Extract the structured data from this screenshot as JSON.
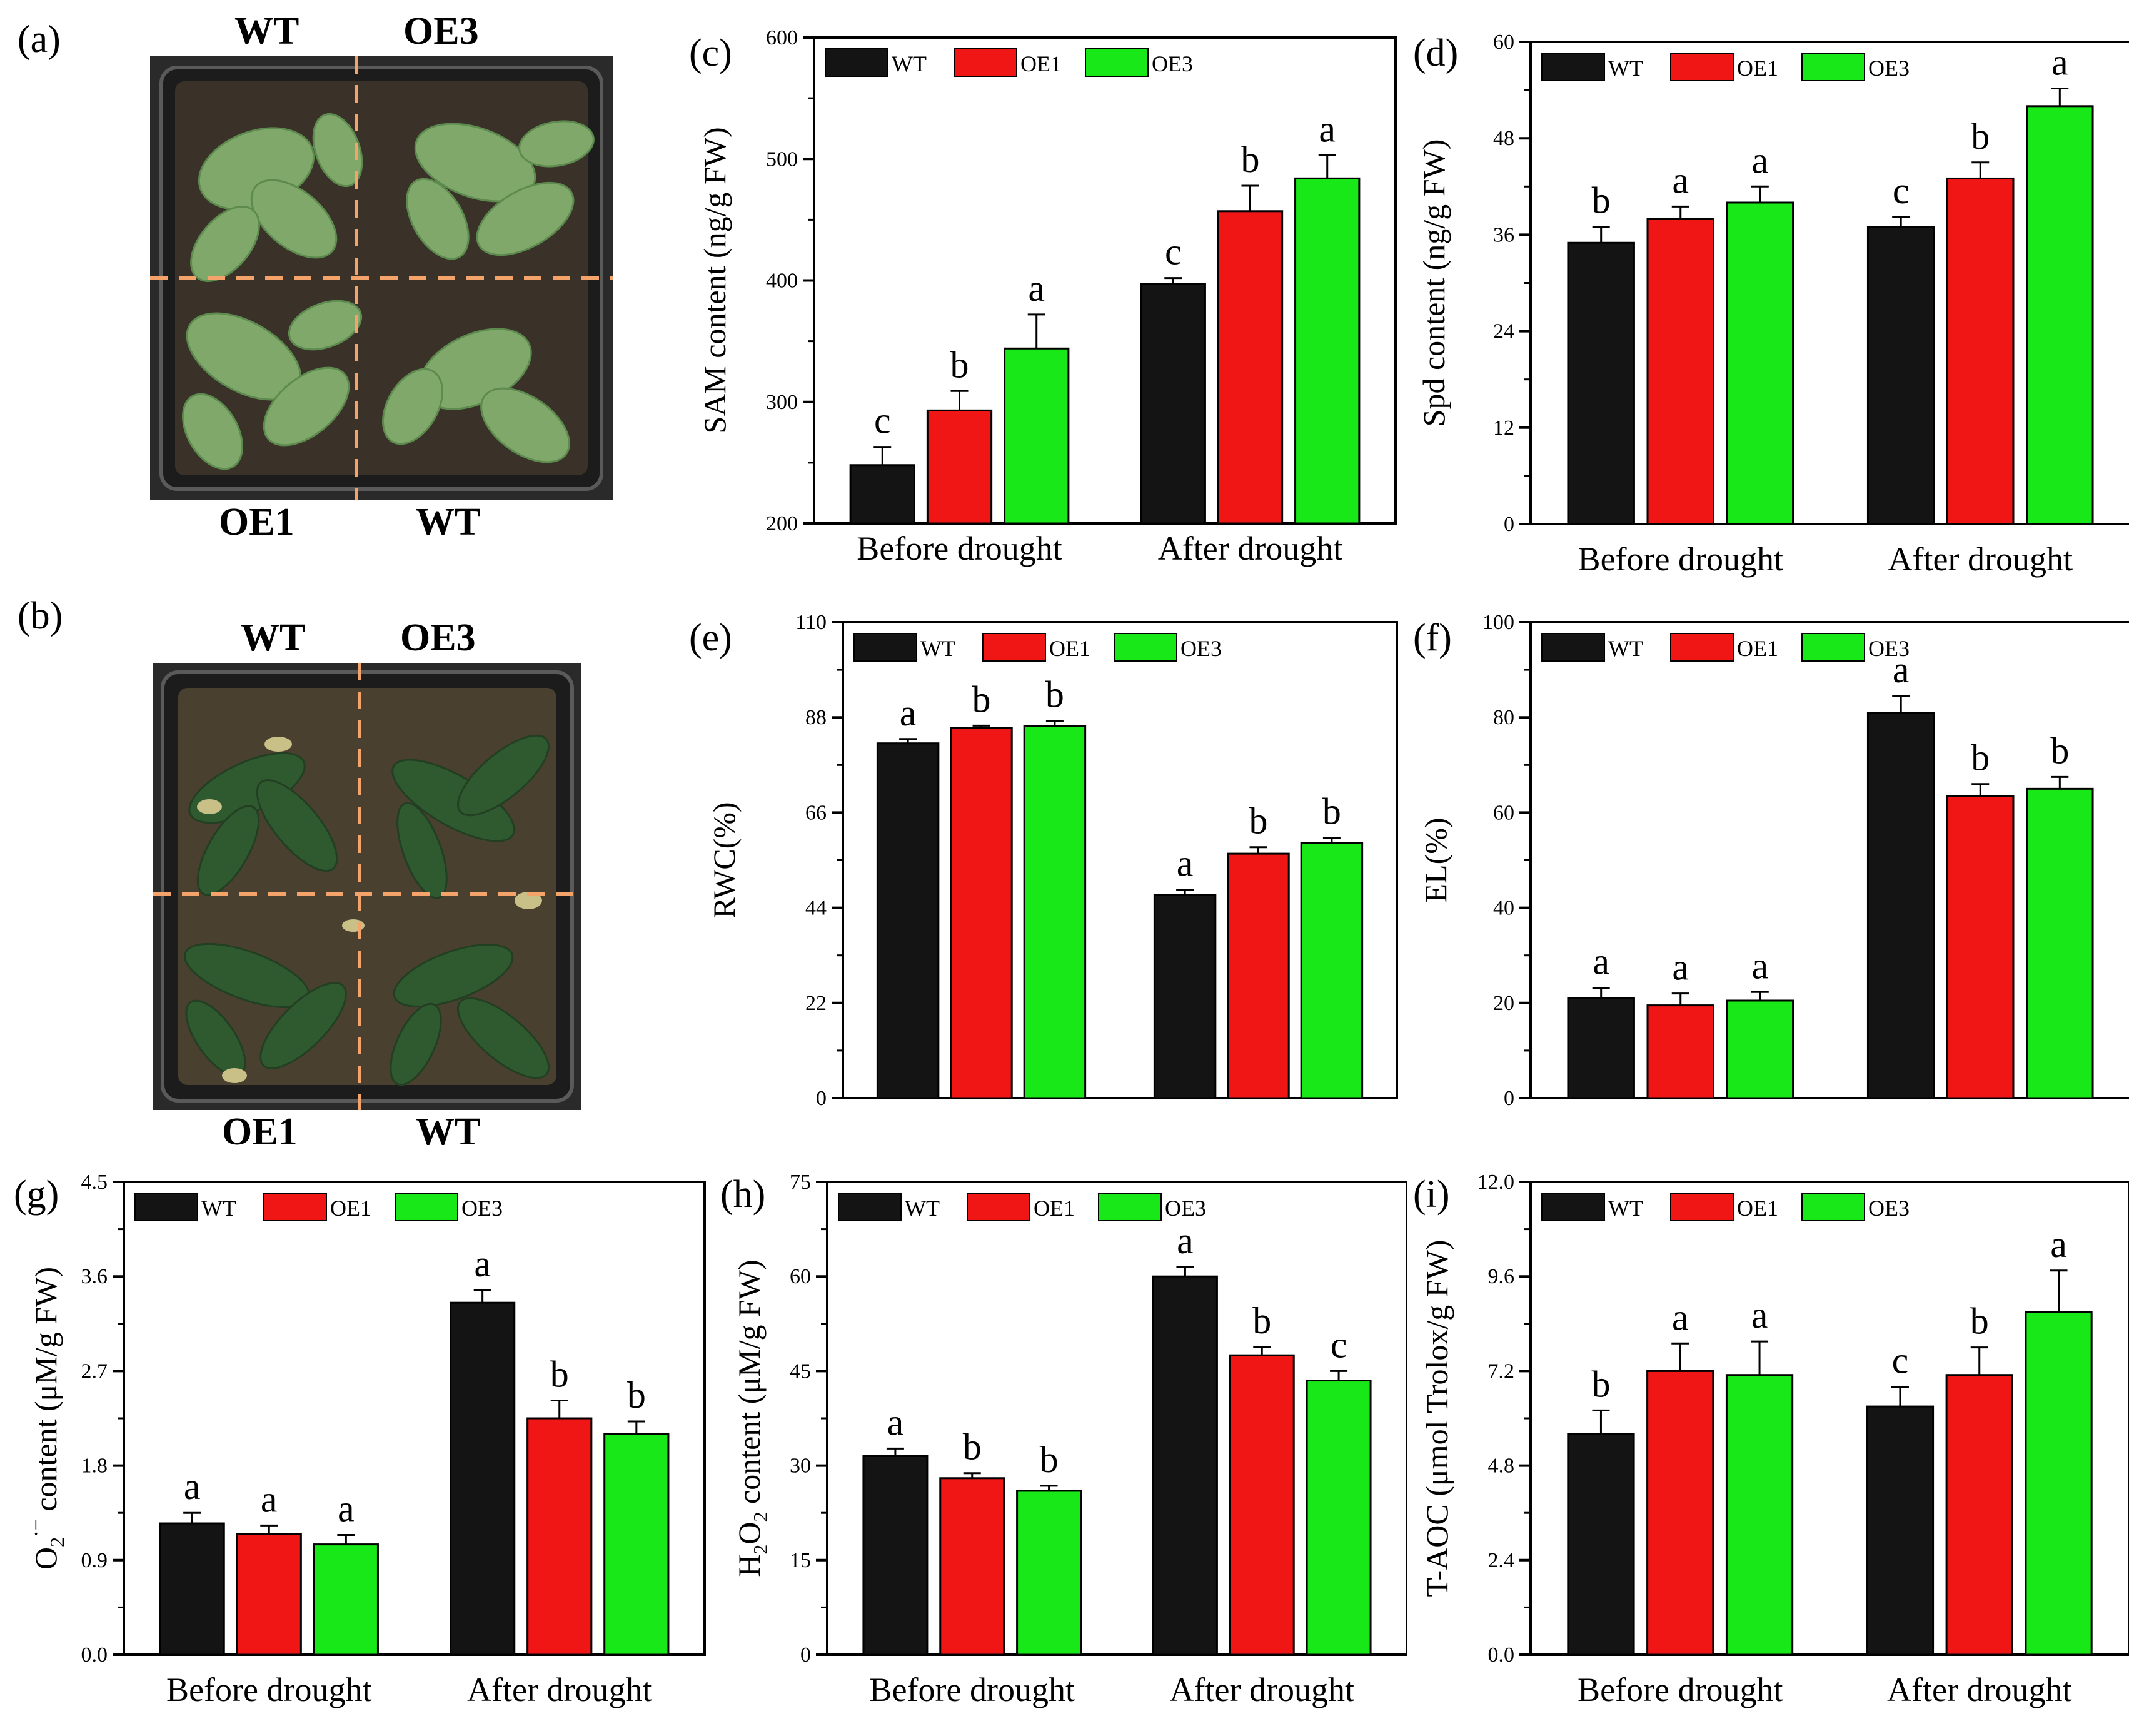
{
  "legend_colors": {
    "WT": "#141414",
    "OE1": "#f01616",
    "OE3": "#18e818"
  },
  "photos": [
    {
      "letter": "(a)",
      "labels": {
        "top_left": "WT",
        "top_right": "OE3",
        "bottom_left": "OE1",
        "bottom_right": "WT"
      }
    },
    {
      "letter": "(b)",
      "labels": {
        "top_left": "WT",
        "top_right": "OE3",
        "bottom_left": "OE1",
        "bottom_right": "WT"
      }
    }
  ],
  "chart_data": [
    {
      "panel": "(c)",
      "type": "bar",
      "title": "",
      "ylabel": "SAM content (ng/g FW)",
      "xlabel": "",
      "categories": [
        "Before drought",
        "After drought"
      ],
      "ylim": [
        200,
        600
      ],
      "yticks": [
        200,
        300,
        400,
        500,
        600
      ],
      "yticklabels": [
        "200",
        "300",
        "400",
        "500",
        "600"
      ],
      "series": [
        {
          "name": "WT",
          "values": [
            248,
            397
          ],
          "errors": [
            15,
            5
          ],
          "letters": [
            "c",
            "c"
          ]
        },
        {
          "name": "OE1",
          "values": [
            293,
            457
          ],
          "errors": [
            16,
            21
          ],
          "letters": [
            "b",
            "b"
          ]
        },
        {
          "name": "OE3",
          "values": [
            344,
            484
          ],
          "errors": [
            28,
            19
          ],
          "letters": [
            "a",
            "a"
          ]
        }
      ]
    },
    {
      "panel": "(d)",
      "type": "bar",
      "title": "",
      "ylabel": "Spd content (ng/g FW)",
      "xlabel": "",
      "categories": [
        "Before drought",
        "After drought"
      ],
      "ylim": [
        0,
        60
      ],
      "yticks": [
        0,
        12,
        24,
        36,
        48,
        60
      ],
      "yticklabels": [
        "0",
        "12",
        "24",
        "36",
        "48",
        "60"
      ],
      "series": [
        {
          "name": "WT",
          "values": [
            35,
            37
          ],
          "errors": [
            2,
            1.2
          ],
          "letters": [
            "b",
            "c"
          ]
        },
        {
          "name": "OE1",
          "values": [
            38,
            43
          ],
          "errors": [
            1.5,
            2
          ],
          "letters": [
            "a",
            "b"
          ]
        },
        {
          "name": "OE3",
          "values": [
            40,
            52
          ],
          "errors": [
            2,
            2.2
          ],
          "letters": [
            "a",
            "a"
          ]
        }
      ]
    },
    {
      "panel": "(e)",
      "type": "bar",
      "title": "",
      "ylabel": "RWC(%)",
      "xlabel": "",
      "categories": [
        "Before drought",
        "After drought"
      ],
      "ylim": [
        0,
        110
      ],
      "yticks": [
        0,
        22,
        44,
        66,
        88,
        110
      ],
      "yticklabels": [
        "0",
        "22",
        "44",
        "66",
        "88",
        "110"
      ],
      "series": [
        {
          "name": "WT",
          "values": [
            82,
            47
          ],
          "errors": [
            1,
            1.2
          ],
          "letters": [
            "a",
            "a"
          ]
        },
        {
          "name": "OE1",
          "values": [
            85.5,
            56.5
          ],
          "errors": [
            0.6,
            1.5
          ],
          "letters": [
            "b",
            "b"
          ]
        },
        {
          "name": "OE3",
          "values": [
            86,
            59
          ],
          "errors": [
            1.2,
            1.2
          ],
          "letters": [
            "b",
            "b"
          ]
        }
      ]
    },
    {
      "panel": "(f)",
      "type": "bar",
      "title": "",
      "ylabel": "EL(%)",
      "xlabel": "",
      "categories": [
        "Before drought",
        "After drought"
      ],
      "ylim": [
        0,
        100
      ],
      "yticks": [
        0,
        20,
        40,
        60,
        80,
        100
      ],
      "yticklabels": [
        "0",
        "20",
        "40",
        "60",
        "80",
        "100"
      ],
      "series": [
        {
          "name": "WT",
          "values": [
            21,
            81
          ],
          "errors": [
            2.2,
            3.5
          ],
          "letters": [
            "a",
            "a"
          ]
        },
        {
          "name": "OE1",
          "values": [
            19.5,
            63.5
          ],
          "errors": [
            2.5,
            2.5
          ],
          "letters": [
            "a",
            "b"
          ]
        },
        {
          "name": "OE3",
          "values": [
            20.5,
            65
          ],
          "errors": [
            1.8,
            2.5
          ],
          "letters": [
            "a",
            "b"
          ]
        }
      ]
    },
    {
      "panel": "(g)",
      "type": "bar",
      "title": "",
      "ylabel": "O2·− content (μM/g FW)",
      "xlabel": "",
      "ylabel_parts": {
        "main": "O",
        "sub": "2",
        "sup": "·−",
        "rest": " content (μM/g FW)"
      },
      "categories": [
        "Before drought",
        "After drought"
      ],
      "ylim": [
        0,
        4.5
      ],
      "yticks": [
        0,
        0.9,
        1.8,
        2.7,
        3.6,
        4.5
      ],
      "yticklabels": [
        "0.0",
        "0.9",
        "1.8",
        "2.7",
        "3.6",
        "4.5"
      ],
      "series": [
        {
          "name": "WT",
          "values": [
            1.25,
            3.35
          ],
          "errors": [
            0.1,
            0.12
          ],
          "letters": [
            "a",
            "a"
          ]
        },
        {
          "name": "OE1",
          "values": [
            1.15,
            2.25
          ],
          "errors": [
            0.08,
            0.17
          ],
          "letters": [
            "a",
            "b"
          ]
        },
        {
          "name": "OE3",
          "values": [
            1.05,
            2.1
          ],
          "errors": [
            0.09,
            0.12
          ],
          "letters": [
            "a",
            "b"
          ]
        }
      ]
    },
    {
      "panel": "(h)",
      "type": "bar",
      "title": "",
      "ylabel": "H2O2 content (μM/g FW)",
      "xlabel": "",
      "ylabel_parts": {
        "h": "H",
        "sub1": "2",
        "o": "O",
        "sub2": "2",
        "rest": " content (μM/g FW)"
      },
      "categories": [
        "Before drought",
        "After drought"
      ],
      "ylim": [
        0,
        75
      ],
      "yticks": [
        0,
        15,
        30,
        45,
        60,
        75
      ],
      "yticklabels": [
        "0",
        "15",
        "30",
        "45",
        "60",
        "75"
      ],
      "series": [
        {
          "name": "WT",
          "values": [
            31.5,
            60
          ],
          "errors": [
            1.2,
            1.5
          ],
          "letters": [
            "a",
            "a"
          ]
        },
        {
          "name": "OE1",
          "values": [
            28,
            47.5
          ],
          "errors": [
            0.8,
            1.3
          ],
          "letters": [
            "b",
            "b"
          ]
        },
        {
          "name": "OE3",
          "values": [
            26,
            43.5
          ],
          "errors": [
            0.8,
            1.5
          ],
          "letters": [
            "b",
            "c"
          ]
        }
      ]
    },
    {
      "panel": "(i)",
      "type": "bar",
      "title": "",
      "ylabel": "T-AOC (μmol Trolox/g FW)",
      "xlabel": "",
      "categories": [
        "Before drought",
        "After drought"
      ],
      "ylim": [
        0,
        12
      ],
      "yticks": [
        0,
        2.4,
        4.8,
        7.2,
        9.6,
        12
      ],
      "yticklabels": [
        "0.0",
        "2.4",
        "4.8",
        "7.2",
        "9.6",
        "12.0"
      ],
      "series": [
        {
          "name": "WT",
          "values": [
            5.6,
            6.3
          ],
          "errors": [
            0.6,
            0.5
          ],
          "letters": [
            "b",
            "c"
          ]
        },
        {
          "name": "OE1",
          "values": [
            7.2,
            7.1
          ],
          "errors": [
            0.7,
            0.7
          ],
          "letters": [
            "a",
            "b"
          ]
        },
        {
          "name": "OE3",
          "values": [
            7.1,
            8.7
          ],
          "errors": [
            0.85,
            1.05
          ],
          "letters": [
            "a",
            "a"
          ]
        }
      ]
    }
  ]
}
